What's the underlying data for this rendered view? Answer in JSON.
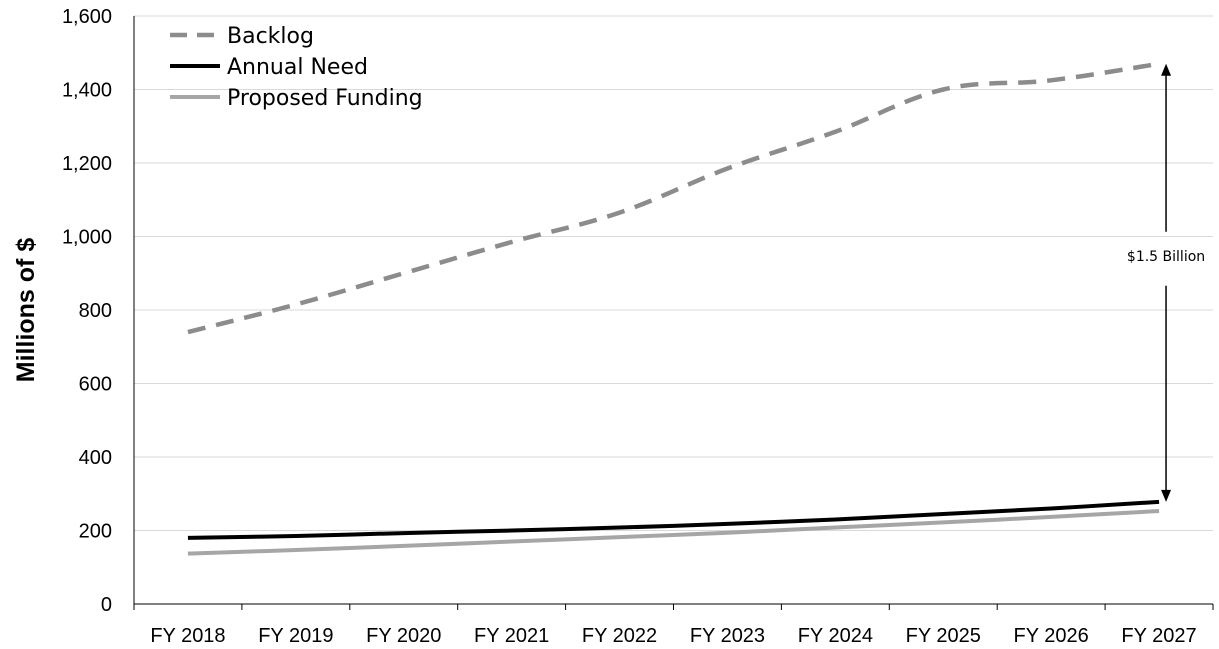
{
  "chart_data": {
    "type": "line",
    "title": "",
    "xlabel": "",
    "ylabel": "Millions of $",
    "categories": [
      "FY 2018",
      "FY 2019",
      "FY 2020",
      "FY 2021",
      "FY 2022",
      "FY 2023",
      "FY 2024",
      "FY 2025",
      "FY 2026",
      "FY 2027"
    ],
    "ylim": [
      0,
      1600
    ],
    "yticks": [
      "0",
      "200",
      "400",
      "600",
      "800",
      "1,000",
      "1,200",
      "1,400",
      "1,600"
    ],
    "ytick_values": [
      0,
      200,
      400,
      600,
      800,
      1000,
      1200,
      1400,
      1600
    ],
    "grid": "horizontal",
    "legend_position": "top-left",
    "series": [
      {
        "name": "Backlog",
        "style": "dashed",
        "color": "#8c8c8c",
        "values": [
          740,
          815,
          900,
          985,
          1065,
          1185,
          1285,
          1400,
          1425,
          1470
        ]
      },
      {
        "name": "Annual Need",
        "style": "solid",
        "color": "#000000",
        "values": [
          180,
          185,
          193,
          200,
          208,
          218,
          230,
          245,
          260,
          278
        ]
      },
      {
        "name": "Proposed Funding",
        "style": "solid",
        "color": "#a6a6a6",
        "values": [
          137,
          147,
          158,
          170,
          182,
          194,
          208,
          222,
          237,
          253
        ]
      }
    ],
    "annotation": {
      "text": "$1.5 Billion",
      "category": "FY 2027",
      "from": 278,
      "to": 1470
    }
  }
}
